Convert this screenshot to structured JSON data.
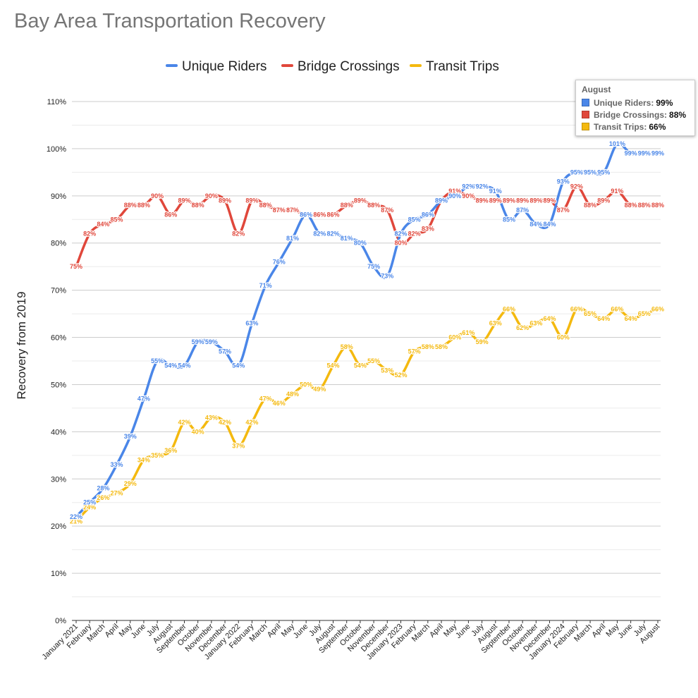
{
  "chart_data": {
    "type": "line",
    "title": "Bay Area Transportation Recovery",
    "xlabel": "",
    "ylabel": "Recovery from 2019",
    "ylim": [
      0,
      110
    ],
    "yticks": [
      "0%",
      "10%",
      "20%",
      "30%",
      "40%",
      "50%",
      "60%",
      "70%",
      "80%",
      "90%",
      "100%",
      "110%"
    ],
    "legend_position": "top",
    "categories": [
      "January 2021",
      "February",
      "March",
      "April",
      "May",
      "June",
      "July",
      "August",
      "September",
      "October",
      "November",
      "December",
      "January 2022",
      "February",
      "March",
      "April",
      "May",
      "June",
      "July",
      "August",
      "September",
      "October",
      "November",
      "December",
      "January 2023",
      "February",
      "March",
      "April",
      "May",
      "June",
      "July",
      "August",
      "September",
      "October",
      "November",
      "December",
      "January 2024",
      "February",
      "March",
      "April",
      "May",
      "June",
      "July",
      "August"
    ],
    "series": [
      {
        "name": "Unique Riders",
        "color": "#4a86e8",
        "values": [
          22,
          25,
          28,
          33,
          39,
          47,
          55,
          54,
          54,
          59,
          59,
          57,
          54,
          63,
          71,
          76,
          81,
          86,
          82,
          82,
          81,
          80,
          75,
          73,
          82,
          85,
          86,
          89,
          90,
          92,
          92,
          91,
          85,
          87,
          84,
          84,
          93,
          95,
          95,
          95,
          101,
          99,
          99,
          99
        ],
        "labels": [
          "22%",
          "25%",
          "28%",
          "33%",
          "39%",
          "47%",
          "55%",
          "54%",
          "54%",
          "59%",
          "59%",
          "57%",
          "54%",
          "63%",
          "71%",
          "76%",
          "81%",
          "86%",
          "82%",
          "82%",
          "81%",
          "80%",
          "75%",
          "73%",
          "82%",
          "85%",
          "86%",
          "89%",
          "90%",
          "92%",
          "92%",
          "91%",
          "85%",
          "87%",
          "84%",
          "84%",
          "93%",
          "95%",
          "95%",
          "95%",
          "101%",
          "99%",
          "99%",
          "99%"
        ]
      },
      {
        "name": "Bridge Crossings",
        "color": "#e0473b",
        "values": [
          75,
          82,
          84,
          85,
          88,
          88,
          90,
          86,
          89,
          88,
          90,
          89,
          82,
          89,
          88,
          87,
          87,
          86,
          86,
          86,
          88,
          89,
          88,
          87,
          80,
          82,
          83,
          89,
          91,
          90,
          89,
          89,
          89,
          89,
          89,
          89,
          87,
          92,
          88,
          89,
          91,
          88,
          88,
          88
        ],
        "labels": [
          "75%",
          "82%",
          "84%",
          "85%",
          "88%",
          "88%",
          "90%",
          "86%",
          "89%",
          "88%",
          "90%",
          "89%",
          "82%",
          "89%",
          "88%",
          "87%",
          "87%",
          "86%",
          "86%",
          "86%",
          "88%",
          "89%",
          "88%",
          "87%",
          "80%",
          "82%",
          "83%",
          "89%",
          "91%",
          "90%",
          "89%",
          "89%",
          "89%",
          "89%",
          "89%",
          "89%",
          "87%",
          "92%",
          "88%",
          "89%",
          "91%",
          "88%",
          "88%",
          "88%"
        ]
      },
      {
        "name": "Transit Trips",
        "color": "#f4b90f",
        "values": [
          21,
          24,
          26,
          27,
          29,
          34,
          35,
          36,
          42,
          40,
          43,
          42,
          37,
          42,
          47,
          46,
          48,
          50,
          49,
          54,
          58,
          54,
          55,
          53,
          52,
          57,
          58,
          58,
          60,
          61,
          59,
          63,
          66,
          62,
          63,
          64,
          60,
          66,
          65,
          64,
          66,
          64,
          65,
          66
        ],
        "labels": [
          "21%",
          "24%",
          "26%",
          "27%",
          "29%",
          "34%",
          "35%",
          "36%",
          "42%",
          "40%",
          "43%",
          "42%",
          "37%",
          "42%",
          "47%",
          "46%",
          "48%",
          "50%",
          "49%",
          "54%",
          "58%",
          "54%",
          "55%",
          "53%",
          "52%",
          "57%",
          "58%",
          "58%",
          "60%",
          "61%",
          "59%",
          "63%",
          "66%",
          "62%",
          "63%",
          "64%",
          "60%",
          "66%",
          "65%",
          "64%",
          "66%",
          "64%",
          "65%",
          "66%"
        ]
      }
    ]
  },
  "tooltip": {
    "header": "August",
    "rows": [
      {
        "label": "Unique Riders:",
        "value": "99%",
        "color": "#4a86e8"
      },
      {
        "label": "Bridge Crossings:",
        "value": "88%",
        "color": "#e0473b"
      },
      {
        "label": "Transit Trips:",
        "value": "66%",
        "color": "#f4b90f"
      }
    ]
  }
}
